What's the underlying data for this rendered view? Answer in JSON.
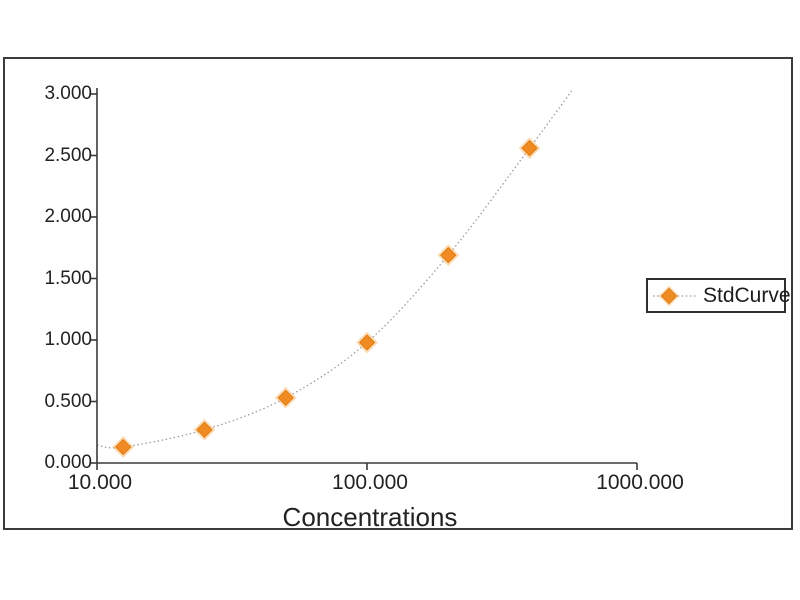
{
  "chart_data": {
    "type": "scatter",
    "title": "",
    "xlabel": "Concentrations",
    "ylabel": "",
    "x_scale": "log",
    "xlim": [
      10000,
      1000000
    ],
    "ylim": [
      0.0,
      3.0
    ],
    "grid": false,
    "series": [
      {
        "name": "StdCurve",
        "x": [
          12500,
          25000,
          50000,
          100000,
          200000,
          400000
        ],
        "y": [
          0.13,
          0.27,
          0.53,
          0.98,
          1.69,
          2.56
        ],
        "marker": "diamond",
        "line_style": "dotted-fit-curve"
      }
    ],
    "fit_curve_extent": {
      "start": {
        "x": 10000,
        "y": 0.146
      },
      "end": {
        "x": 575000,
        "y": 3.03
      }
    },
    "x_ticks": [
      {
        "value": 10000,
        "label": "10.000"
      },
      {
        "value": 100000,
        "label": "100.000"
      },
      {
        "value": 1000000,
        "label": "1000.000"
      }
    ],
    "y_ticks": [
      {
        "value": 0.0,
        "label": "0.000"
      },
      {
        "value": 0.5,
        "label": "0.500"
      },
      {
        "value": 1.0,
        "label": "1.000"
      },
      {
        "value": 1.5,
        "label": "1.500"
      },
      {
        "value": 2.0,
        "label": "2.000"
      },
      {
        "value": 2.5,
        "label": "2.500"
      },
      {
        "value": 3.0,
        "label": "3.000"
      }
    ],
    "legend_position": "right"
  },
  "legend": {
    "label": "StdCurve"
  },
  "colors": {
    "marker_fill": "#EF8B22",
    "marker_edge": "#E07C10",
    "marker_halo": "rgba(246,167,74,0.40)",
    "curve_line": "#9C9C9C",
    "axis_line": "#3A3A3A",
    "text": "#222222",
    "frame_border": "#3B3B3B",
    "background": "#FFFFFF"
  }
}
